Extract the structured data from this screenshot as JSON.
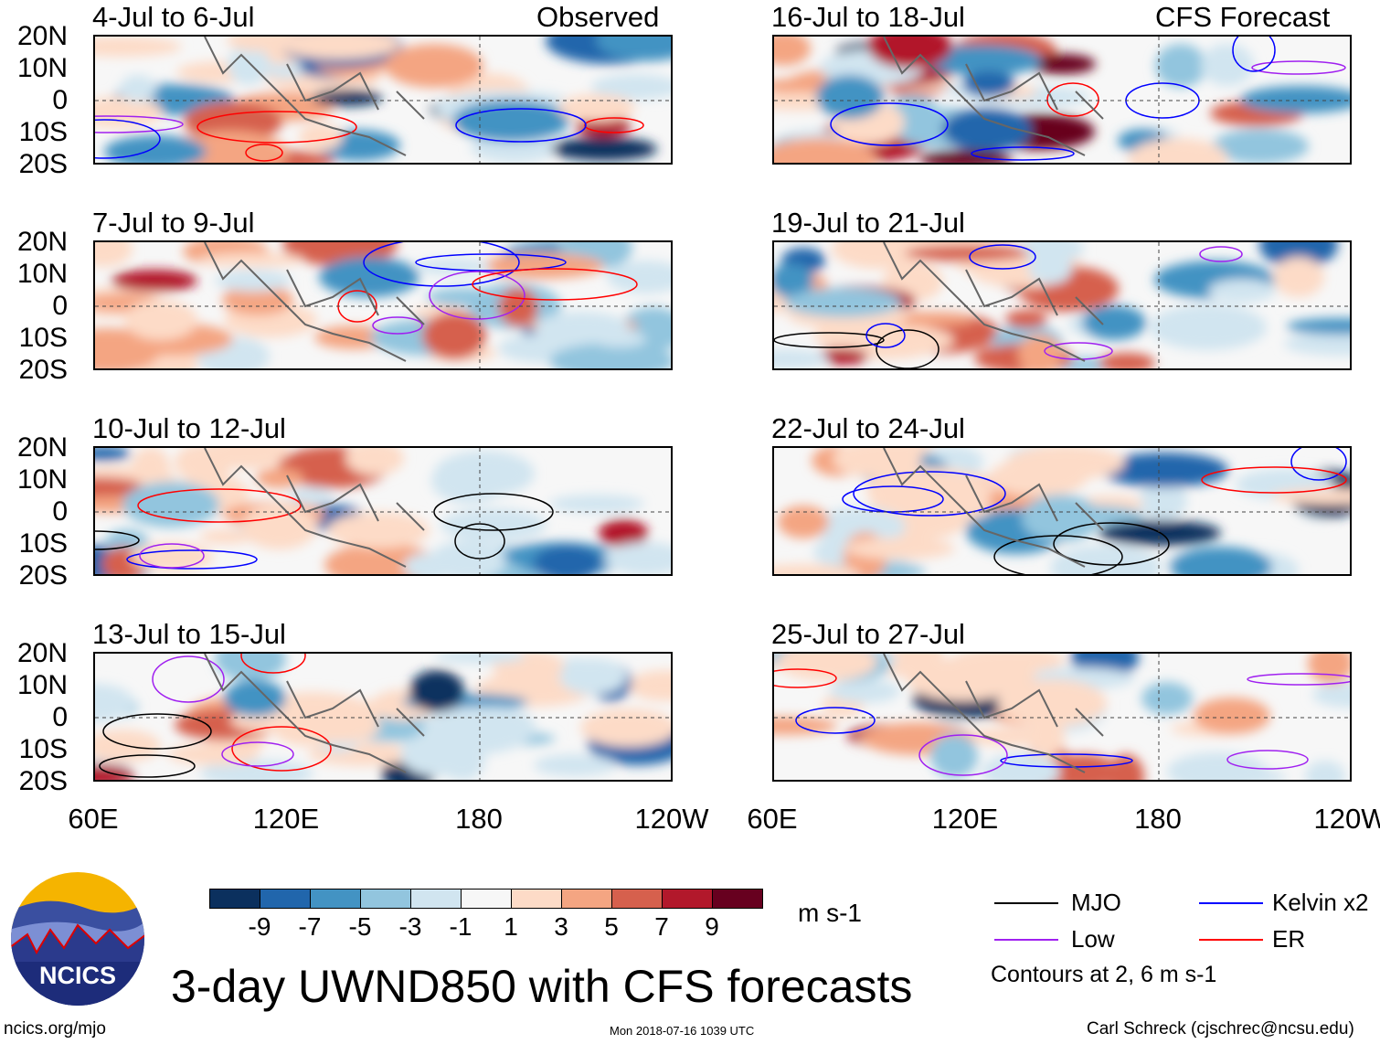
{
  "header": {
    "left_label": "Observed",
    "right_label": "CFS Forecast"
  },
  "panels": {
    "observed": [
      "4-Jul to 6-Jul",
      "7-Jul to 9-Jul",
      "10-Jul to 12-Jul",
      "13-Jul to 15-Jul"
    ],
    "forecast": [
      "16-Jul to 18-Jul",
      "19-Jul to 21-Jul",
      "22-Jul to 24-Jul",
      "25-Jul to 27-Jul"
    ]
  },
  "lat_labels": [
    "20N",
    "10N",
    "0",
    "10S",
    "20S"
  ],
  "lon_labels": [
    "60E",
    "120E",
    "180",
    "120W"
  ],
  "colorbar": {
    "labels": [
      "-9",
      "-7",
      "-5",
      "-3",
      "-1",
      "1",
      "3",
      "5",
      "7",
      "9"
    ],
    "colors": [
      "#0b305e",
      "#2166ac",
      "#4393c3",
      "#92c5de",
      "#d1e5f0",
      "#f7f7f7",
      "#fddbc7",
      "#f4a582",
      "#d6604d",
      "#b2182b",
      "#67001f"
    ],
    "units": "m s-1"
  },
  "legend": {
    "items": [
      {
        "label": "MJO",
        "color": "#000000"
      },
      {
        "label": "Kelvin x2",
        "color": "#0000ff"
      },
      {
        "label": "Low",
        "color": "#a020f0"
      },
      {
        "label": "ER",
        "color": "#ff0000"
      }
    ],
    "note": "Contours at 2, 6 m s-1"
  },
  "logo_text": "NCICS",
  "title": "3-day UWND850 with CFS forecasts",
  "footer": {
    "left": "ncics.org/mjo",
    "center": "Mon 2018-07-16 1039 UTC",
    "right": "Carl Schreck (cjschrec@ncsu.edu)"
  }
}
